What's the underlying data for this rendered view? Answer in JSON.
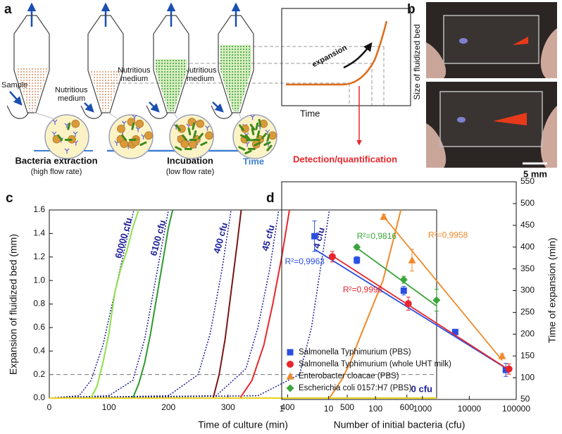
{
  "panel_a": {
    "label": "a",
    "sample": "Sample",
    "medium_labels": [
      [
        "Nutritious",
        "medium"
      ],
      [
        "Nutritious",
        "medium"
      ],
      [
        "Nutritious",
        "medium"
      ]
    ],
    "extraction": "Bacteria extraction",
    "extraction_note": "(high flow rate)",
    "incubation": "Incubation",
    "incubation_note": "(low flow rate)",
    "time_arrow": "Time",
    "inset": {
      "curve_label": "expansion",
      "x_label": "Time",
      "y_label": "Size of fluidized bed"
    },
    "detection": "Detection/quantification"
  },
  "panel_b": {
    "label": "b",
    "scale_bar": "5 mm"
  },
  "chart_data": [
    {
      "type": "line",
      "panel_label": "c",
      "x_label": "Time of culture (min)",
      "y_label": "Expansion of fluidized bed (mm)",
      "xlim": [
        0,
        650
      ],
      "xticks": [
        0,
        100,
        200,
        300,
        400,
        500,
        600
      ],
      "ylim": [
        0,
        1.6
      ],
      "yticks": [
        {
          "value": 0,
          "label": "0.0"
        },
        0.2,
        0.4,
        0.6,
        0.8,
        {
          "value": 1,
          "label": "1.0"
        },
        1.2,
        1.4,
        1.6
      ],
      "reference_line": 0.2,
      "series": [
        {
          "name": "60000 cfu",
          "color": "#8fe04a",
          "x": [
            70,
            80,
            90,
            100,
            110,
            120,
            130,
            140,
            150
          ],
          "values": [
            0,
            0.1,
            0.3,
            0.55,
            0.9,
            1.1,
            1.25,
            1.45,
            1.6
          ],
          "fit": {
            "color": "#1f1f99",
            "x": [
              0,
              50,
              70,
              90,
              110,
              130,
              142
            ],
            "values": [
              0,
              0.02,
              0.15,
              0.45,
              0.9,
              1.35,
              1.6
            ]
          }
        },
        {
          "name": "6100 cfu",
          "color": "#2e9a2e",
          "x": [
            140,
            150,
            160,
            170,
            180,
            190,
            200,
            207
          ],
          "values": [
            0,
            0.12,
            0.3,
            0.55,
            0.85,
            1.15,
            1.45,
            1.6
          ],
          "fit": {
            "color": "#1f1f99",
            "x": [
              0,
              100,
              140,
              160,
              180,
              200
            ],
            "values": [
              0,
              0.02,
              0.15,
              0.5,
              1.05,
              1.6
            ]
          }
        },
        {
          "name": "400 cfu",
          "color": "#7a1515",
          "x": [
            275,
            285,
            295,
            305,
            315,
            322
          ],
          "values": [
            0,
            0.2,
            0.5,
            0.9,
            1.3,
            1.6
          ],
          "fit": {
            "color": "#1f1f99",
            "x": [
              0,
              200,
              250,
              270,
              290,
              305
            ],
            "values": [
              0,
              0.02,
              0.2,
              0.55,
              1.1,
              1.6
            ]
          }
        },
        {
          "name": "45 cfu",
          "color": "#e8262c",
          "x": [
            320,
            340,
            360,
            375,
            390,
            403
          ],
          "values": [
            0,
            0.15,
            0.45,
            0.8,
            1.2,
            1.6
          ],
          "fit": {
            "color": "#1f1f99",
            "x": [
              0,
              280,
              330,
              350,
              370,
              385
            ],
            "values": [
              0,
              0.02,
              0.25,
              0.6,
              1.1,
              1.6
            ]
          }
        },
        {
          "name": "4 cfu",
          "color": "#f08a2a",
          "x": [
            470,
            490,
            505,
            520,
            540,
            560,
            575,
            590
          ],
          "values": [
            0,
            0.15,
            0.3,
            0.5,
            0.75,
            1.0,
            1.3,
            1.6
          ],
          "fit": {
            "color": "#1f1f99",
            "x": [
              0,
              350,
              420,
              440,
              455,
              470
            ],
            "values": [
              0,
              0.02,
              0.2,
              0.6,
              1.1,
              1.6
            ]
          }
        },
        {
          "name": "0 cfu",
          "color": "#e8d21a",
          "x": [
            0,
            650
          ],
          "values": [
            0,
            0
          ]
        }
      ]
    },
    {
      "type": "scatter",
      "panel_label": "d",
      "x_label": "Number of initial bacteria (cfu)",
      "y2_label": "Time of expansion (min)",
      "xlog": true,
      "xlim": [
        1,
        100000
      ],
      "xticks": [
        1,
        10,
        100,
        1000,
        10000,
        100000
      ],
      "y2lim": [
        50,
        550
      ],
      "y2ticks": [
        50,
        100,
        150,
        200,
        250,
        300,
        350,
        400,
        450,
        500,
        550
      ],
      "legend": "lower left",
      "series": [
        {
          "name": "Salmonella Typhimurium (PBS)",
          "color": "#2a4fe0",
          "marker": "square",
          "axis": "y2",
          "x": [
            5,
            40,
            400,
            5000,
            60000
          ],
          "values": [
            425,
            370,
            300,
            205,
            118
          ],
          "errors": [
            35,
            8,
            10,
            3,
            15
          ],
          "fit": {
            "x": [
              5,
              60000
            ],
            "values": [
              395,
              122
            ]
          },
          "r2": "R²=0,9963"
        },
        {
          "name": "Salmonella Typhimurium (whole UHT milk)",
          "color": "#e8262c",
          "marker": "circle",
          "axis": "y2",
          "x": [
            12,
            500,
            70000
          ],
          "values": [
            378,
            270,
            120
          ],
          "errors": [
            12,
            15,
            12
          ],
          "fit": {
            "x": [
              12,
              70000
            ],
            "values": [
              380,
              118
            ]
          },
          "r2": "R²=0,9998"
        },
        {
          "name": "Enterobacter cloacae (PBS)",
          "color": "#f08a2a",
          "marker": "triangle",
          "axis": "y2",
          "x": [
            150,
            600,
            50000
          ],
          "values": [
            470,
            370,
            150
          ],
          "errors": [
            5,
            25,
            5
          ],
          "fit": {
            "x": [
              150,
              50000
            ],
            "values": [
              470,
              140
            ]
          },
          "r2": "R²=0,9958"
        },
        {
          "name": "Escherichia coli 0157:H7 (PBS)",
          "color": "#3aa63a",
          "marker": "diamond",
          "axis": "y2",
          "x": [
            40,
            400,
            2000
          ],
          "values": [
            400,
            325,
            278
          ],
          "errors": [
            5,
            8,
            25
          ],
          "fit": {
            "x": [
              40,
              2000
            ],
            "values": [
              398,
              265
            ]
          },
          "r2": "R²=0,9816"
        }
      ]
    }
  ]
}
